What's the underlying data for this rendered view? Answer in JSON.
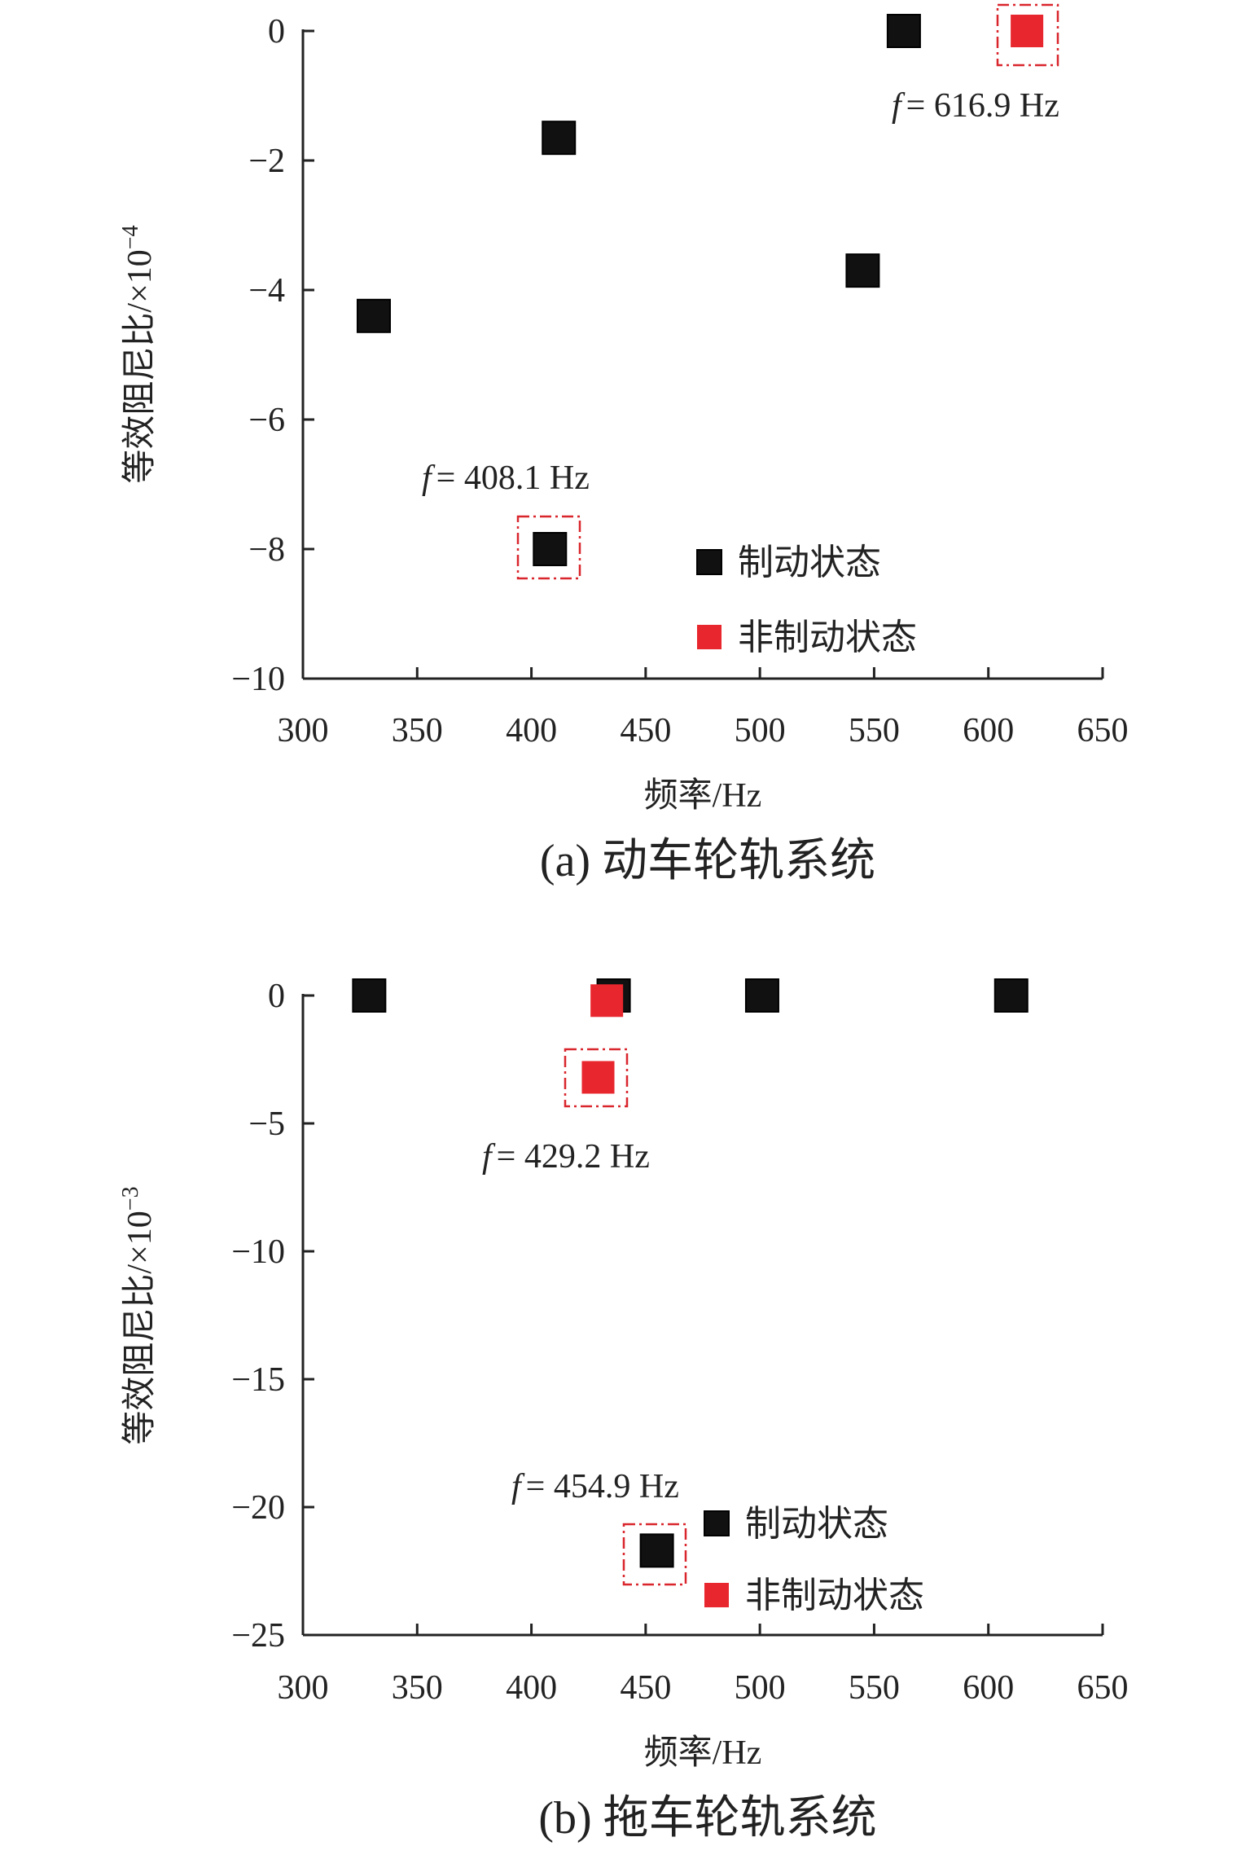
{
  "chart_data": [
    {
      "type": "scatter",
      "caption": "(a) 动车轮轨系统",
      "xlabel": "频率/Hz",
      "ylabel": "等效阻尼比/×10",
      "ylabel_exp": "−4",
      "xlim": [
        300,
        650
      ],
      "ylim": [
        -10,
        0
      ],
      "xticks": [
        300,
        350,
        400,
        450,
        500,
        550,
        600,
        650
      ],
      "yticks": [
        0,
        -2,
        -4,
        -6,
        -8,
        -10
      ],
      "grid": false,
      "legend": "inside-bottom-right",
      "series": [
        {
          "name": "制动状态",
          "color": "#111111",
          "points": [
            [
              331,
              -4.4
            ],
            [
              412,
              -1.65
            ],
            [
              545,
              -3.7
            ],
            [
              408.1,
              -8.0
            ],
            [
              563,
              0
            ]
          ]
        },
        {
          "name": "非制动状态",
          "color": "#e8262d",
          "points": [
            [
              616.9,
              0
            ]
          ]
        }
      ],
      "annotations": [
        {
          "f_label": "f",
          "text": "= 616.9 Hz",
          "x": 616.9,
          "y": 0
        },
        {
          "f_label": "f",
          "text": "= 408.1 Hz",
          "x": 408.1,
          "y": -8.0
        }
      ]
    },
    {
      "type": "scatter",
      "caption": "(b) 拖车轮轨系统",
      "xlabel": "频率/Hz",
      "ylabel": "等效阻尼比/×10",
      "ylabel_exp": "−3",
      "xlim": [
        300,
        650
      ],
      "ylim": [
        -25,
        0
      ],
      "xticks": [
        300,
        350,
        400,
        450,
        500,
        550,
        600,
        650
      ],
      "yticks": [
        0,
        -5,
        -10,
        -15,
        -20,
        -25
      ],
      "grid": false,
      "legend": "inside-bottom-right",
      "series": [
        {
          "name": "制动状态",
          "color": "#111111",
          "points": [
            [
              329,
              0
            ],
            [
              436,
              0
            ],
            [
              501,
              0
            ],
            [
              610,
              0
            ],
            [
              454.9,
              -21.7
            ]
          ]
        },
        {
          "name": "非制动状态",
          "color": "#e8262d",
          "points": [
            [
              433,
              -0.2
            ],
            [
              429.2,
              -3.2
            ]
          ]
        }
      ],
      "annotations": [
        {
          "f_label": "f",
          "text": "= 429.2 Hz",
          "x": 429.2,
          "y": -3.2
        },
        {
          "f_label": "f",
          "text": "= 454.9 Hz",
          "x": 454.9,
          "y": -21.7
        }
      ]
    }
  ]
}
